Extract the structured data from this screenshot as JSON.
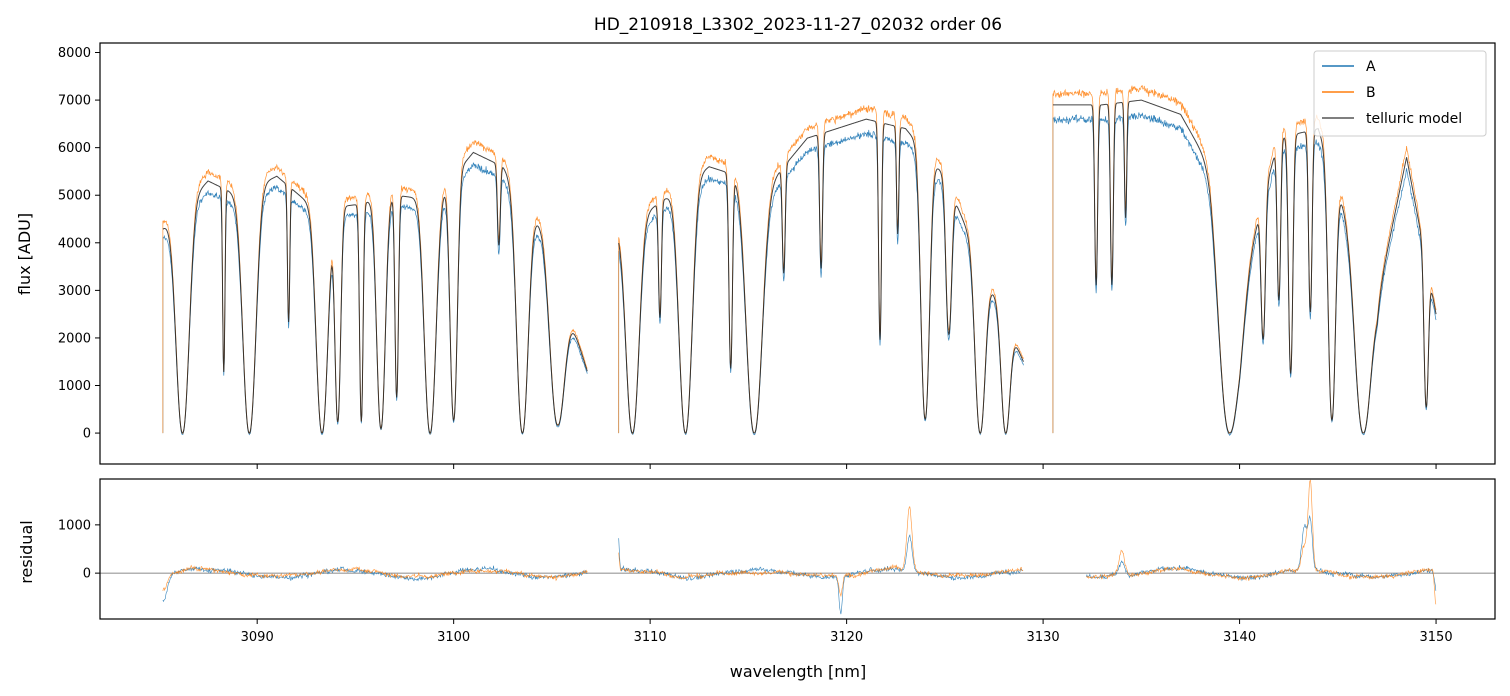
{
  "chart_data": [
    {
      "type": "line",
      "title": "HD_210918_L3302_2023-11-27_02032  order 06",
      "xlabel": "",
      "ylabel": "flux [ADU]",
      "xlim": [
        3082,
        3153
      ],
      "ylim": [
        -650,
        8200
      ],
      "yticks": [
        0,
        1000,
        2000,
        3000,
        4000,
        5000,
        6000,
        7000,
        8000
      ],
      "xticks": [
        3090,
        3100,
        3110,
        3120,
        3130,
        3140,
        3150
      ],
      "grid": false,
      "legend_position": "top-right",
      "series": [
        {
          "name": "A",
          "color": "#1f77b4"
        },
        {
          "name": "B",
          "color": "#ff7f0e"
        },
        {
          "name": "telluric model",
          "color": "#333333"
        }
      ],
      "segments": [
        {
          "range": [
            3085.2,
            3106.8
          ],
          "continuum": [
            [
              3085.2,
              4300
            ],
            [
              3087.5,
              5300
            ],
            [
              3089,
              5000
            ],
            [
              3091,
              5400
            ],
            [
              3093,
              4700
            ],
            [
              3095,
              4800
            ],
            [
              3097,
              5000
            ],
            [
              3099,
              4900
            ],
            [
              3101,
              5900
            ],
            [
              3102.5,
              5600
            ],
            [
              3104.5,
              4300
            ],
            [
              3106.8,
              1300
            ]
          ]
        },
        {
          "range": [
            3108.4,
            3129.0
          ],
          "continuum": [
            [
              3108.4,
              4300
            ],
            [
              3110,
              4700
            ],
            [
              3113,
              5600
            ],
            [
              3116,
              5200
            ],
            [
              3118,
              6200
            ],
            [
              3121,
              6600
            ],
            [
              3123,
              6400
            ],
            [
              3125,
              5400
            ],
            [
              3127,
              3400
            ],
            [
              3129,
              1500
            ]
          ]
        },
        {
          "range": [
            3130.5,
            3150.0
          ],
          "continuum": [
            [
              3130.5,
              6900
            ],
            [
              3133,
              6900
            ],
            [
              3135,
              7000
            ],
            [
              3137,
              6700
            ],
            [
              3138.5,
              5600
            ],
            [
              3140,
              3000
            ],
            [
              3142,
              6200
            ],
            [
              3144,
              6400
            ],
            [
              3145.5,
              4500
            ],
            [
              3147,
              2800
            ],
            [
              3148.5,
              5800
            ],
            [
              3150,
              2500
            ]
          ]
        }
      ],
      "absorption_lines": [
        {
          "center": 3086.2,
          "width": 0.45,
          "depth": 1.0
        },
        {
          "center": 3088.3,
          "width": 0.08,
          "depth": 0.75
        },
        {
          "center": 3089.6,
          "width": 0.45,
          "depth": 1.0
        },
        {
          "center": 3091.6,
          "width": 0.08,
          "depth": 0.55
        },
        {
          "center": 3093.3,
          "width": 0.4,
          "depth": 1.0
        },
        {
          "center": 3094.1,
          "width": 0.2,
          "depth": 0.95
        },
        {
          "center": 3095.3,
          "width": 0.12,
          "depth": 0.95
        },
        {
          "center": 3096.3,
          "width": 0.3,
          "depth": 0.98
        },
        {
          "center": 3097.1,
          "width": 0.12,
          "depth": 0.85
        },
        {
          "center": 3098.8,
          "width": 0.4,
          "depth": 1.0
        },
        {
          "center": 3100.0,
          "width": 0.25,
          "depth": 0.95
        },
        {
          "center": 3102.3,
          "width": 0.1,
          "depth": 0.3
        },
        {
          "center": 3103.5,
          "width": 0.4,
          "depth": 1.0
        },
        {
          "center": 3105.3,
          "width": 0.5,
          "depth": 0.95
        },
        {
          "center": 3109.1,
          "width": 0.45,
          "depth": 1.0
        },
        {
          "center": 3110.5,
          "width": 0.1,
          "depth": 0.5
        },
        {
          "center": 3111.8,
          "width": 0.45,
          "depth": 1.0
        },
        {
          "center": 3114.1,
          "width": 0.12,
          "depth": 0.75
        },
        {
          "center": 3115.3,
          "width": 0.55,
          "depth": 1.0
        },
        {
          "center": 3116.8,
          "width": 0.1,
          "depth": 0.4
        },
        {
          "center": 3118.7,
          "width": 0.1,
          "depth": 0.45
        },
        {
          "center": 3121.7,
          "width": 0.1,
          "depth": 0.7
        },
        {
          "center": 3122.6,
          "width": 0.08,
          "depth": 0.35
        },
        {
          "center": 3124.0,
          "width": 0.3,
          "depth": 0.95
        },
        {
          "center": 3125.2,
          "width": 0.2,
          "depth": 0.6
        },
        {
          "center": 3126.8,
          "width": 0.35,
          "depth": 1.0
        },
        {
          "center": 3128.1,
          "width": 0.3,
          "depth": 1.0
        },
        {
          "center": 3132.7,
          "width": 0.1,
          "depth": 0.55
        },
        {
          "center": 3133.5,
          "width": 0.1,
          "depth": 0.55
        },
        {
          "center": 3134.2,
          "width": 0.08,
          "depth": 0.35
        },
        {
          "center": 3139.5,
          "width": 0.7,
          "depth": 1.0
        },
        {
          "center": 3141.2,
          "width": 0.15,
          "depth": 0.6
        },
        {
          "center": 3142.0,
          "width": 0.12,
          "depth": 0.55
        },
        {
          "center": 3142.6,
          "width": 0.15,
          "depth": 0.8
        },
        {
          "center": 3143.6,
          "width": 0.12,
          "depth": 0.6
        },
        {
          "center": 3144.7,
          "width": 0.25,
          "depth": 0.95
        },
        {
          "center": 3146.3,
          "width": 0.55,
          "depth": 1.0
        },
        {
          "center": 3149.5,
          "width": 0.15,
          "depth": 0.85
        }
      ]
    },
    {
      "type": "line",
      "title": "",
      "xlabel": "wavelength [nm]",
      "ylabel": "residual",
      "xlim": [
        3082,
        3153
      ],
      "ylim": [
        -950,
        1950
      ],
      "yticks": [
        0,
        1000
      ],
      "xticks": [
        3090,
        3100,
        3110,
        3120,
        3130,
        3140,
        3150
      ],
      "zero_line": true,
      "series": [
        {
          "name": "A",
          "color": "#1f77b4"
        },
        {
          "name": "B",
          "color": "#ff7f0e"
        }
      ],
      "segments": [
        [
          3085.2,
          3106.8
        ],
        [
          3108.4,
          3129.0
        ],
        [
          3132.2,
          3150.0
        ]
      ],
      "features": [
        {
          "x": 3085.2,
          "value": -550,
          "width": 0.3
        },
        {
          "x": 3123.2,
          "value": 1300,
          "width": 0.18
        },
        {
          "x": 3119.7,
          "value": -800,
          "width": 0.12
        },
        {
          "x": 3143.6,
          "value": 1800,
          "width": 0.15
        },
        {
          "x": 3143.3,
          "value": 900,
          "width": 0.2
        },
        {
          "x": 3150.0,
          "value": -750,
          "width": 0.1
        },
        {
          "x": 3108.4,
          "value": 600,
          "width": 0.05
        },
        {
          "x": 3134.0,
          "value": 500,
          "width": 0.2
        }
      ]
    }
  ]
}
